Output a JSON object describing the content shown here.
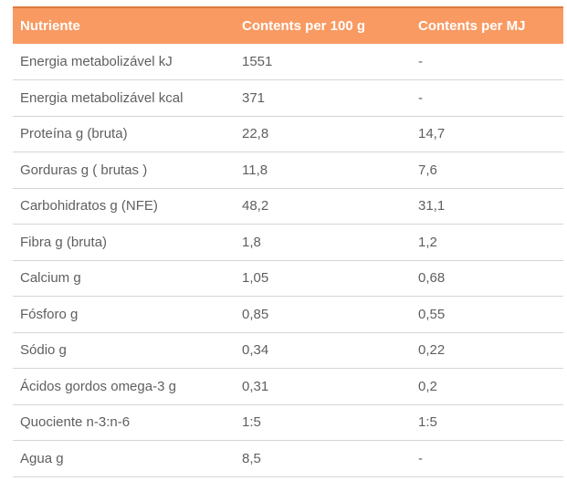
{
  "table": {
    "columns": [
      {
        "label": "Nutriente"
      },
      {
        "label": "Contents per 100 g"
      },
      {
        "label": "Contents per MJ"
      }
    ],
    "rows": [
      {
        "nutrient": "Energia metabolizável kJ",
        "per_100g": "1551",
        "per_mj": "-"
      },
      {
        "nutrient": "Energia metabolizável kcal",
        "per_100g": "371",
        "per_mj": "-"
      },
      {
        "nutrient": "Proteína g (bruta)",
        "per_100g": "22,8",
        "per_mj": "14,7"
      },
      {
        "nutrient": "Gorduras g ( brutas )",
        "per_100g": "11,8",
        "per_mj": "7,6"
      },
      {
        "nutrient": "Carbohidratos g (NFE)",
        "per_100g": "48,2",
        "per_mj": "31,1"
      },
      {
        "nutrient": "Fibra g (bruta)",
        "per_100g": "1,8",
        "per_mj": "1,2"
      },
      {
        "nutrient": "Calcium g",
        "per_100g": "1,05",
        "per_mj": "0,68"
      },
      {
        "nutrient": "Fósforo g",
        "per_100g": "0,85",
        "per_mj": "0,55"
      },
      {
        "nutrient": "Sódio g",
        "per_100g": "0,34",
        "per_mj": "0,22"
      },
      {
        "nutrient": "Ácidos gordos omega-3 g",
        "per_100g": "0,31",
        "per_mj": "0,2"
      },
      {
        "nutrient": "Quociente n-3:n-6",
        "per_100g": "1:5",
        "per_mj": "1:5"
      },
      {
        "nutrient": "Agua g",
        "per_100g": "8,5",
        "per_mj": "-"
      }
    ]
  },
  "colors": {
    "header_bg": "#F99A62",
    "header_border": "#DE7A40",
    "row_border": "#D5D5D5",
    "body_text": "#5E5F61",
    "header_text": "#FFFFFF"
  }
}
